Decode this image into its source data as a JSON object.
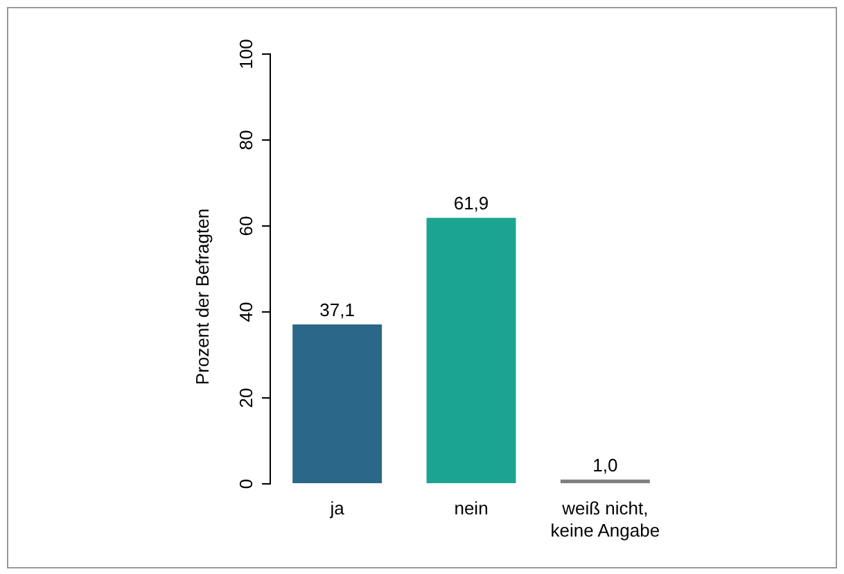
{
  "chart_data": {
    "type": "bar",
    "ylabel": "Prozent der Befragten",
    "categories": [
      "ja",
      "nein",
      "weiß nicht,\nkeine Angabe"
    ],
    "values": [
      37.1,
      61.9,
      1.0
    ],
    "colors": [
      "#2a6788",
      "#1ba591",
      "#7f7f7f"
    ],
    "value_labels": [
      "37,1",
      "61,9",
      "1,0"
    ],
    "ylim": [
      0,
      100
    ],
    "yticks": [
      0,
      20,
      40,
      60,
      80,
      100
    ],
    "grid": false,
    "legend": false
  }
}
